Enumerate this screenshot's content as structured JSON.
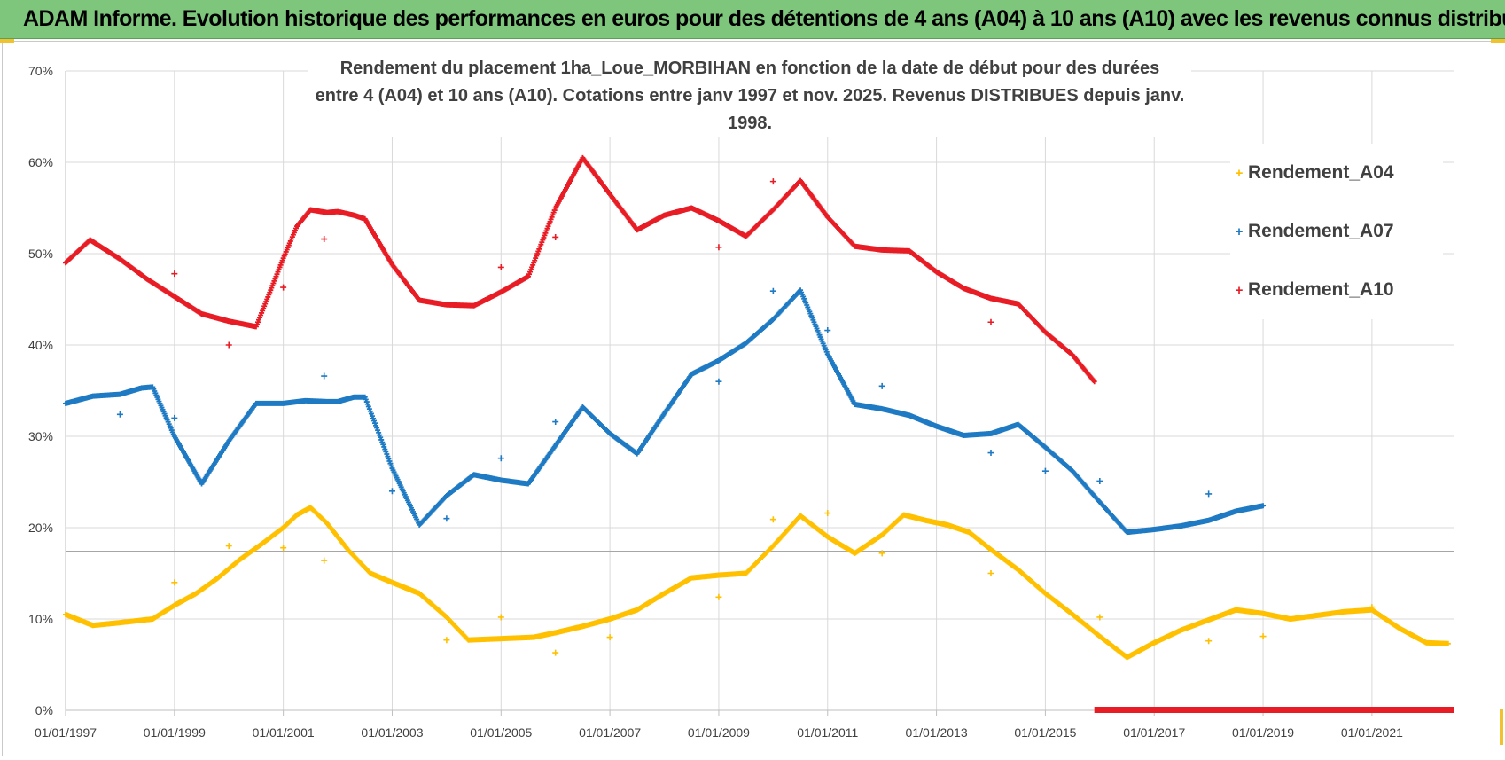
{
  "banner": {
    "title": "ADAM Informe. Evolution historique des performances en euros pour des détentions de 4 ans (A04) à 10 ans (A10) avec les revenus connus distribués"
  },
  "colors": {
    "banner": "#7dc67b",
    "a04": "#ffc000",
    "a07": "#1f7ac4",
    "a10": "#e81c24",
    "grid": "#d9d9d9"
  },
  "chart_data": {
    "type": "scatter",
    "title_line1": "Rendement du placement 1ha_Loue_MORBIHAN en fonction de la date de début pour des durées",
    "title_line2": "entre 4 (A04) et 10 ans (A10).  Cotations entre janv 1997 et nov. 2025. Revenus DISTRIBUES depuis janv. 1998.",
    "xlabel": "",
    "ylabel": "",
    "x_range": [
      1997.0,
      2022.5
    ],
    "ylim": [
      0,
      70
    ],
    "y_ticks": [
      "0%",
      "10%",
      "20%",
      "30%",
      "40%",
      "50%",
      "60%",
      "70%"
    ],
    "x_ticks": [
      "01/01/1997",
      "01/01/1999",
      "01/01/2001",
      "01/01/2003",
      "01/01/2005",
      "01/01/2007",
      "01/01/2009",
      "01/01/2011",
      "01/01/2013",
      "01/01/2015",
      "01/01/2017",
      "01/01/2019",
      "01/01/2021"
    ],
    "reference_line": 17.4,
    "legend": {
      "a04": "Rendement_A04",
      "a07": "Rendement_A07",
      "a10": "Rendement_A10"
    },
    "series": [
      {
        "name": "Rendement_A04",
        "color": "#ffc000",
        "x": [
          1997.0,
          1997.5,
          1998.0,
          1998.3,
          1998.6,
          1999.0,
          1999.4,
          1999.8,
          2000.2,
          2000.6,
          2001.0,
          2001.25,
          2001.5,
          2001.8,
          2002.2,
          2002.6,
          2003.0,
          2003.5,
          2004.0,
          2004.4,
          2004.8,
          2005.2,
          2005.6,
          2006.0,
          2006.5,
          2007.0,
          2007.5,
          2008.0,
          2008.5,
          2009.0,
          2009.5,
          2010.0,
          2010.5,
          2011.0,
          2011.5,
          2012.0,
          2012.4,
          2012.8,
          2013.2,
          2013.6,
          2014.0,
          2014.5,
          2015.0,
          2015.5,
          2016.0,
          2016.5,
          2017.0,
          2017.5,
          2018.0,
          2018.5,
          2019.0,
          2019.5,
          2020.0,
          2020.5,
          2021.0,
          2021.5,
          2022.0,
          2022.4
        ],
        "y": [
          10.5,
          9.3,
          9.6,
          9.8,
          10.0,
          11.5,
          12.8,
          14.5,
          16.5,
          18.2,
          20.0,
          21.4,
          22.2,
          20.5,
          17.5,
          15.0,
          14.0,
          12.8,
          10.2,
          7.7,
          7.8,
          7.9,
          8.0,
          8.5,
          9.2,
          10.0,
          11.0,
          12.8,
          14.5,
          14.8,
          15.0,
          18.0,
          21.3,
          19.0,
          17.2,
          19.2,
          21.4,
          20.8,
          20.3,
          19.5,
          17.6,
          15.4,
          12.8,
          10.5,
          8.1,
          5.8,
          7.4,
          8.8,
          9.9,
          11.0,
          10.6,
          10.0,
          10.4,
          10.8,
          11.0,
          9.0,
          7.4,
          7.3
        ]
      },
      {
        "name": "Rendement_A07",
        "color": "#1f7ac4",
        "x": [
          1997.0,
          1997.5,
          1998.0,
          1998.4,
          1998.6,
          1999.0,
          1999.5,
          2000.0,
          2000.5,
          2001.0,
          2001.4,
          2001.8,
          2002.0,
          2002.3,
          2002.5,
          2003.0,
          2003.5,
          2004.0,
          2004.5,
          2005.0,
          2005.5,
          2006.0,
          2006.5,
          2007.0,
          2007.5,
          2008.0,
          2008.5,
          2009.0,
          2009.5,
          2010.0,
          2010.5,
          2011.0,
          2011.5,
          2012.0,
          2012.5,
          2013.0,
          2013.5,
          2014.0,
          2014.5,
          2015.0,
          2015.5,
          2016.0,
          2016.5,
          2017.0,
          2017.5,
          2018.0,
          2018.5,
          2019.0
        ],
        "y": [
          33.6,
          34.4,
          34.6,
          35.3,
          35.4,
          30.0,
          24.8,
          29.5,
          33.6,
          33.6,
          33.9,
          33.8,
          33.8,
          34.3,
          34.3,
          26.5,
          20.3,
          23.5,
          25.8,
          25.2,
          24.8,
          29.0,
          33.2,
          30.3,
          28.1,
          32.5,
          36.8,
          38.3,
          40.2,
          42.8,
          46.0,
          39.0,
          33.5,
          33.0,
          32.3,
          31.1,
          30.1,
          30.3,
          31.3,
          28.8,
          26.2,
          22.8,
          19.5,
          19.8,
          20.2,
          20.8,
          21.8,
          22.4
        ]
      },
      {
        "name": "Rendement_A10",
        "color": "#e81c24",
        "x": [
          1997.0,
          1997.45,
          1998.0,
          1998.5,
          1999.0,
          1999.5,
          2000.0,
          2000.5,
          2001.0,
          2001.25,
          2001.5,
          2001.8,
          2002.0,
          2002.3,
          2002.5,
          2003.0,
          2003.5,
          2004.0,
          2004.5,
          2005.0,
          2005.5,
          2006.0,
          2006.5,
          2007.0,
          2007.5,
          2008.0,
          2008.5,
          2009.0,
          2009.5,
          2010.0,
          2010.5,
          2011.0,
          2011.5,
          2012.0,
          2012.5,
          2013.0,
          2013.5,
          2014.0,
          2014.5,
          2015.0,
          2015.5,
          2015.9
        ],
        "y": [
          49.0,
          51.5,
          49.4,
          47.2,
          45.3,
          43.4,
          42.6,
          42.0,
          49.5,
          53.0,
          54.8,
          54.5,
          54.6,
          54.2,
          53.8,
          48.8,
          44.9,
          44.4,
          44.3,
          45.8,
          47.5,
          55.0,
          60.5,
          56.5,
          52.6,
          54.2,
          55.0,
          53.6,
          51.9,
          54.8,
          58.0,
          54.0,
          50.8,
          50.4,
          50.3,
          48.0,
          46.2,
          45.1,
          44.5,
          41.4,
          38.9,
          36.0
        ]
      }
    ],
    "outliers": {
      "a04": [
        [
          1999.0,
          14.0
        ],
        [
          2000.0,
          18.0
        ],
        [
          2001.0,
          17.8
        ],
        [
          2001.75,
          16.4
        ],
        [
          2004.0,
          7.7
        ],
        [
          2005.0,
          10.2
        ],
        [
          2006.0,
          6.3
        ],
        [
          2007.0,
          8.0
        ],
        [
          2009.0,
          12.4
        ],
        [
          2010.0,
          20.9
        ],
        [
          2011.0,
          21.6
        ],
        [
          2012.0,
          17.2
        ],
        [
          2014.0,
          15.0
        ],
        [
          2016.0,
          10.2
        ],
        [
          2018.0,
          7.6
        ],
        [
          2019.0,
          8.1
        ],
        [
          2021.0,
          11.3
        ]
      ],
      "a07": [
        [
          1998.0,
          32.4
        ],
        [
          1999.0,
          32.0
        ],
        [
          2001.75,
          36.6
        ],
        [
          2003.0,
          24.0
        ],
        [
          2004.0,
          21.0
        ],
        [
          2005.0,
          27.6
        ],
        [
          2006.0,
          31.6
        ],
        [
          2009.0,
          36.0
        ],
        [
          2010.0,
          45.9
        ],
        [
          2011.0,
          41.6
        ],
        [
          2012.0,
          35.5
        ],
        [
          2014.0,
          28.2
        ],
        [
          2015.0,
          26.2
        ],
        [
          2016.0,
          25.1
        ],
        [
          2018.0,
          23.7
        ]
      ],
      "a10": [
        [
          1999.0,
          47.8
        ],
        [
          2000.0,
          40.0
        ],
        [
          2001.0,
          46.3
        ],
        [
          2001.75,
          51.6
        ],
        [
          2005.0,
          48.5
        ],
        [
          2006.0,
          51.8
        ],
        [
          2009.0,
          50.7
        ],
        [
          2010.0,
          57.9
        ],
        [
          2014.0,
          42.5
        ]
      ]
    },
    "zero_band_a10": [
      2015.9,
      2022.5
    ]
  }
}
